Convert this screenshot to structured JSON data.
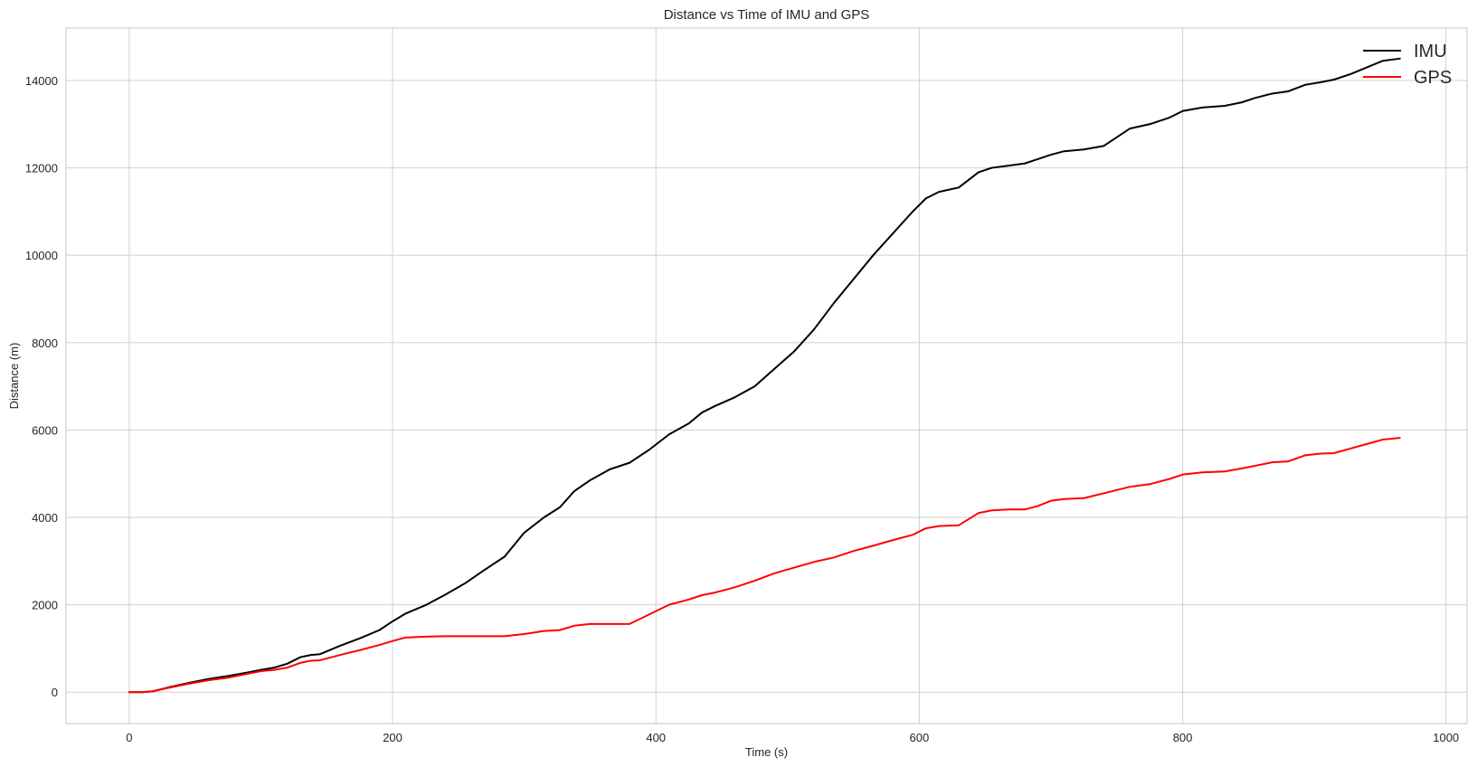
{
  "chart_data": {
    "type": "line",
    "title": "Distance vs Time of IMU and GPS",
    "xlabel": "Time (s)",
    "ylabel": "Distance (m)",
    "xlim": [
      -48,
      1016
    ],
    "ylim": [
      -720,
      15200
    ],
    "grid": true,
    "legend_position": "top-right",
    "x_ticks": [
      0,
      200,
      400,
      600,
      800,
      1000
    ],
    "x_tick_labels": [
      "0",
      "200",
      "400",
      "600",
      "800",
      "1000"
    ],
    "y_ticks": [
      0,
      2000,
      4000,
      6000,
      8000,
      10000,
      12000,
      14000
    ],
    "y_tick_labels": [
      "0",
      "2000",
      "4000",
      "6000",
      "8000",
      "10000",
      "12000",
      "14000"
    ],
    "series": [
      {
        "name": "IMU",
        "color": "#000000",
        "x": [
          0,
          10,
          18,
          30,
          45,
          60,
          75,
          90,
          100,
          110,
          120,
          130,
          138,
          145,
          160,
          175,
          190,
          200,
          210,
          225,
          240,
          255,
          270,
          285,
          300,
          315,
          327,
          338,
          350,
          365,
          380,
          395,
          410,
          425,
          435,
          445,
          460,
          475,
          490,
          505,
          520,
          535,
          550,
          565,
          580,
          595,
          605,
          615,
          630,
          645,
          655,
          668,
          680,
          690,
          700,
          710,
          725,
          740,
          760,
          775,
          790,
          800,
          815,
          832,
          845,
          855,
          868,
          880,
          893,
          905,
          915,
          928,
          940,
          952,
          965
        ],
        "y": [
          0,
          0,
          20,
          110,
          210,
          300,
          370,
          450,
          510,
          560,
          650,
          800,
          850,
          870,
          1060,
          1230,
          1420,
          1620,
          1800,
          1990,
          2230,
          2490,
          2800,
          3100,
          3650,
          4000,
          4230,
          4600,
          4850,
          5100,
          5250,
          5550,
          5900,
          6150,
          6400,
          6550,
          6750,
          7000,
          7400,
          7800,
          8300,
          8900,
          9450,
          10000,
          10500,
          11000,
          11300,
          11450,
          11550,
          11900,
          12000,
          12050,
          12100,
          12200,
          12300,
          12380,
          12420,
          12500,
          12900,
          13000,
          13150,
          13300,
          13380,
          13420,
          13500,
          13600,
          13700,
          13750,
          13900,
          13960,
          14020,
          14150,
          14300,
          14450,
          14500
        ]
      },
      {
        "name": "GPS",
        "color": "#ff0000",
        "x": [
          0,
          10,
          18,
          30,
          45,
          60,
          75,
          90,
          100,
          110,
          120,
          130,
          138,
          145,
          160,
          175,
          190,
          200,
          210,
          225,
          240,
          255,
          270,
          285,
          300,
          315,
          327,
          338,
          350,
          365,
          380,
          395,
          410,
          425,
          435,
          445,
          460,
          475,
          490,
          505,
          520,
          535,
          550,
          565,
          580,
          595,
          605,
          615,
          630,
          645,
          655,
          668,
          680,
          690,
          700,
          710,
          725,
          740,
          760,
          775,
          790,
          800,
          815,
          832,
          845,
          855,
          868,
          880,
          893,
          905,
          915,
          928,
          940,
          952,
          965
        ],
        "y": [
          0,
          0,
          20,
          100,
          190,
          270,
          330,
          420,
          480,
          510,
          560,
          670,
          720,
          730,
          850,
          960,
          1080,
          1170,
          1250,
          1270,
          1280,
          1280,
          1280,
          1280,
          1330,
          1400,
          1420,
          1520,
          1560,
          1560,
          1560,
          1780,
          2000,
          2120,
          2220,
          2280,
          2400,
          2550,
          2720,
          2850,
          2980,
          3080,
          3230,
          3350,
          3480,
          3600,
          3750,
          3800,
          3820,
          4100,
          4160,
          4180,
          4180,
          4260,
          4380,
          4420,
          4440,
          4550,
          4700,
          4760,
          4880,
          4980,
          5030,
          5050,
          5120,
          5180,
          5260,
          5280,
          5420,
          5460,
          5470,
          5580,
          5680,
          5780,
          5820
        ]
      }
    ]
  }
}
